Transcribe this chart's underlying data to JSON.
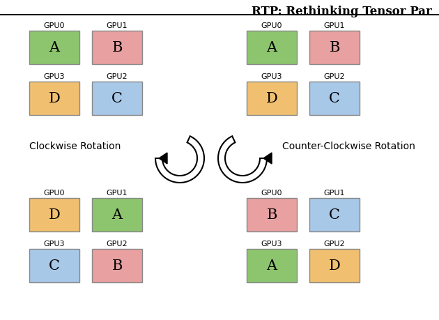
{
  "title": "RTP: Rethinking Tensor Par",
  "colors": {
    "A": "#8dc56e",
    "B": "#e8a0a0",
    "C": "#a8c8e8",
    "D": "#f0c070"
  },
  "left_label": "Clockwise Rotation",
  "right_label": "Counter-Clockwise Rotation",
  "top_left": {
    "GPU0": "A",
    "GPU1": "B",
    "GPU3": "D",
    "GPU2": "C"
  },
  "bottom_left": {
    "GPU0": "D",
    "GPU1": "A",
    "GPU3": "C",
    "GPU2": "B"
  },
  "top_right": {
    "GPU0": "A",
    "GPU1": "B",
    "GPU3": "D",
    "GPU2": "C"
  },
  "bottom_right": {
    "GPU0": "B",
    "GPU1": "C",
    "GPU3": "A",
    "GPU2": "D"
  },
  "background_color": "#ffffff"
}
